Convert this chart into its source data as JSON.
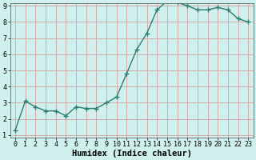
{
  "xlabel": "Humidex (Indice chaleur)",
  "x": [
    0,
    1,
    2,
    3,
    4,
    5,
    6,
    7,
    8,
    9,
    10,
    11,
    12,
    13,
    14,
    15,
    16,
    17,
    18,
    19,
    20,
    21,
    22,
    23
  ],
  "y": [
    1.3,
    3.1,
    2.75,
    2.5,
    2.5,
    2.2,
    2.75,
    2.65,
    2.65,
    3.0,
    3.35,
    4.8,
    6.3,
    7.3,
    8.75,
    9.3,
    9.2,
    9.0,
    8.75,
    8.75,
    8.9,
    8.75,
    8.2,
    8.0
  ],
  "line_color": "#2e7d6e",
  "marker": "+",
  "marker_size": 4,
  "bg_color": "#cff0ed",
  "grid_color": "#d4a0a0",
  "ylim": [
    1,
    9
  ],
  "xlim": [
    -0.5,
    23.5
  ],
  "yticks": [
    1,
    2,
    3,
    4,
    5,
    6,
    7,
    8,
    9
  ],
  "xticks": [
    0,
    1,
    2,
    3,
    4,
    5,
    6,
    7,
    8,
    9,
    10,
    11,
    12,
    13,
    14,
    15,
    16,
    17,
    18,
    19,
    20,
    21,
    22,
    23
  ],
  "tick_labelsize": 6,
  "xlabel_fontsize": 7.5,
  "xlabel_fontweight": "bold",
  "linewidth": 1.0,
  "spine_color": "#666666"
}
